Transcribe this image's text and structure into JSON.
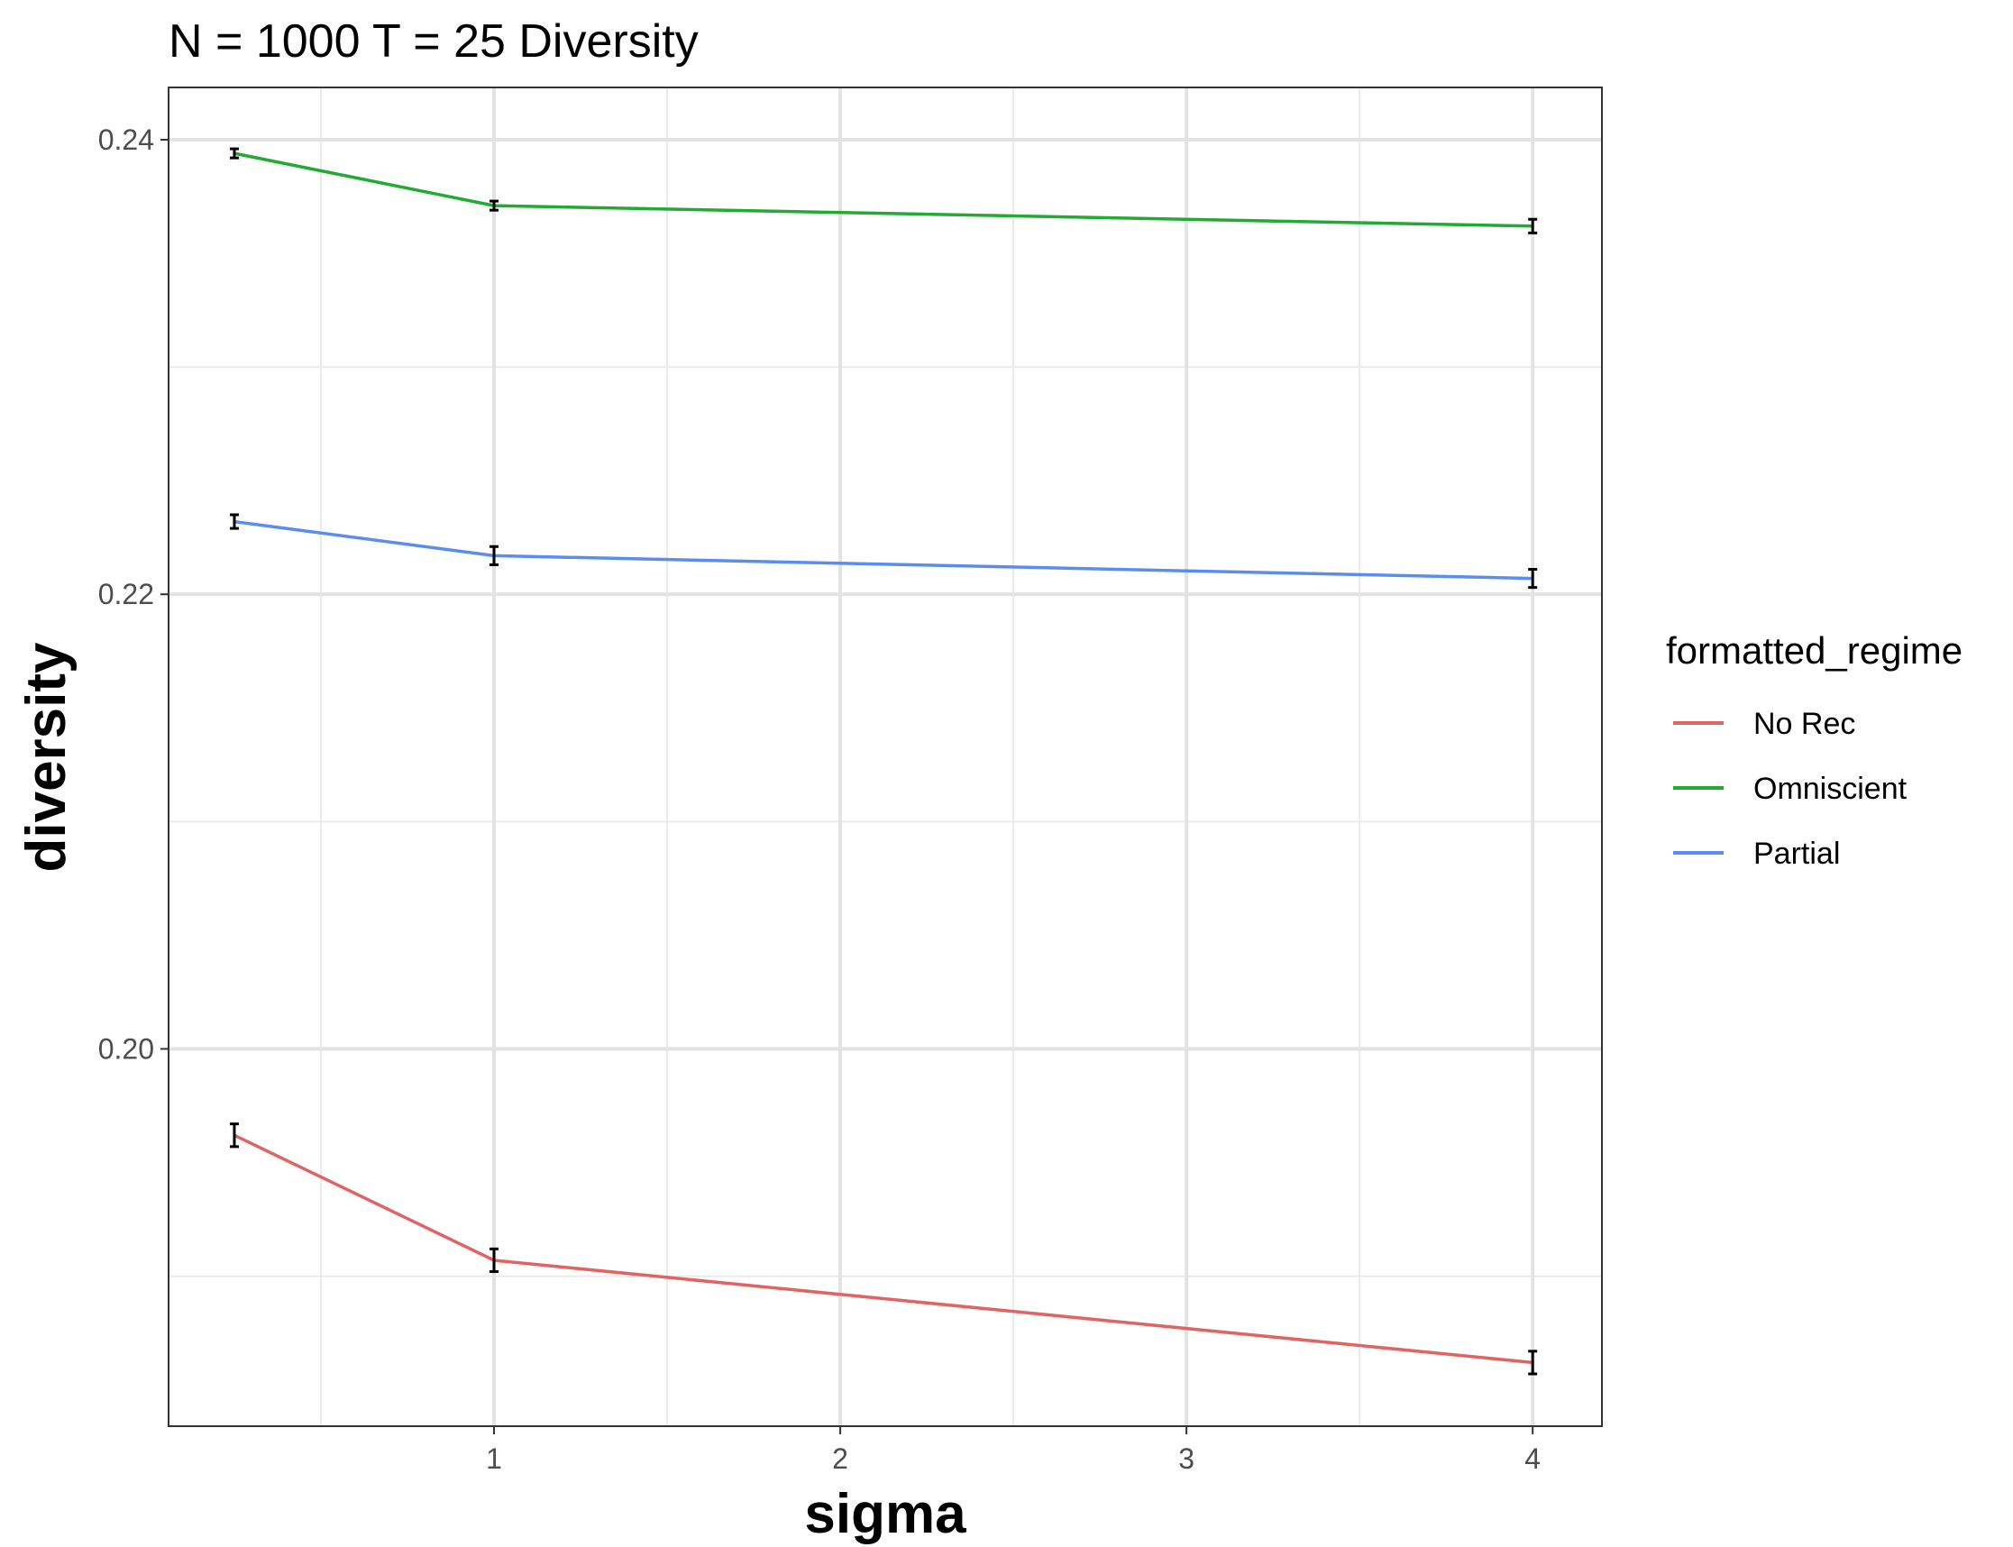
{
  "chart_data": {
    "type": "line",
    "title": "N = 1000 T = 25 Diversity",
    "xlabel": "sigma",
    "ylabel": "diversity",
    "x": [
      0.25,
      1,
      4
    ],
    "xlim": [
      0.06,
      4.2
    ],
    "ylim": [
      0.1834,
      0.2423
    ],
    "x_ticks": [
      1,
      2,
      3,
      4
    ],
    "x_tick_labels": [
      "1",
      "2",
      "3",
      "4"
    ],
    "x_minor_ticks": [
      0.5,
      1.5,
      2.5,
      3.5
    ],
    "y_ticks": [
      0.2,
      0.22,
      0.24
    ],
    "y_tick_labels": [
      "0.20",
      "0.22",
      "0.24"
    ],
    "y_minor_ticks": [
      0.19,
      0.21,
      0.23
    ],
    "grid": true,
    "legend": {
      "title": "formatted_regime",
      "position": "right"
    },
    "series": [
      {
        "name": "No Rec",
        "color": "#e06464",
        "values": [
          0.1962,
          0.1907,
          0.1862
        ],
        "errors": [
          0.0005,
          0.0005,
          0.0005
        ]
      },
      {
        "name": "Omniscient",
        "color": "#22aa33",
        "values": [
          0.2394,
          0.2371,
          0.2362
        ],
        "errors": [
          0.0002,
          0.0002,
          0.0003
        ]
      },
      {
        "name": "Partial",
        "color": "#5b8def",
        "values": [
          0.2232,
          0.2217,
          0.2207
        ],
        "errors": [
          0.0003,
          0.0004,
          0.0004
        ]
      }
    ]
  }
}
